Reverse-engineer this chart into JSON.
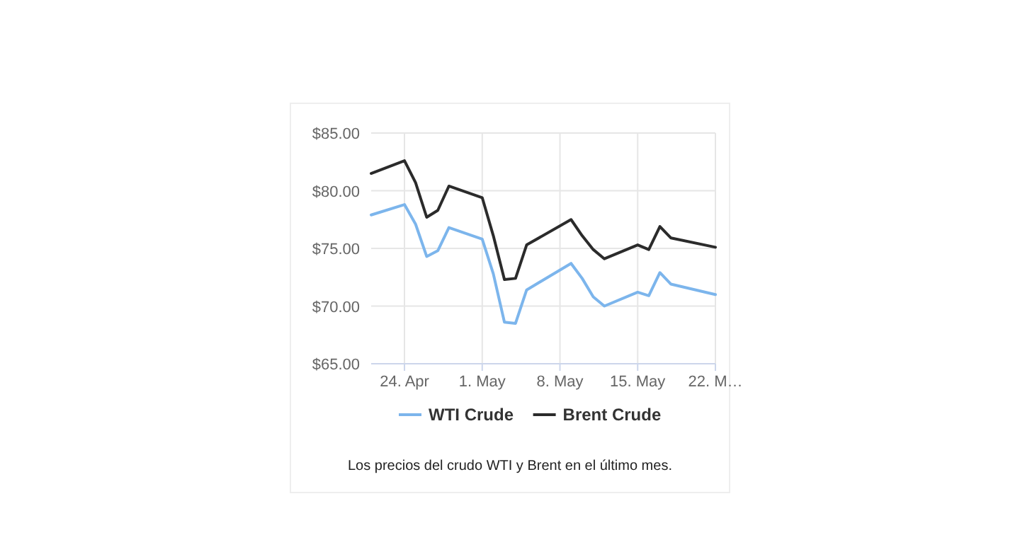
{
  "chart_data": {
    "type": "line",
    "x": [
      "--04-21",
      "--04-24",
      "--04-25",
      "--04-26",
      "--04-27",
      "--04-28",
      "--05-01",
      "--05-02",
      "--05-03",
      "--05-04",
      "--05-05",
      "--05-09",
      "--05-10",
      "--05-11",
      "--05-12",
      "--05-15",
      "--05-16",
      "--05-17",
      "--05-18",
      "--05-22"
    ],
    "series": [
      {
        "name": "WTI Crude",
        "color": "#7cb5ec",
        "values": [
          77.9,
          78.8,
          77.1,
          74.3,
          74.8,
          76.8,
          75.8,
          72.8,
          68.6,
          68.5,
          71.4,
          73.7,
          72.4,
          70.8,
          70.0,
          71.2,
          70.9,
          72.9,
          71.9,
          71.0
        ]
      },
      {
        "name": "Brent Crude",
        "color": "#2b2b2b",
        "values": [
          81.5,
          82.6,
          80.7,
          77.7,
          78.3,
          80.4,
          79.4,
          76.1,
          72.3,
          72.4,
          75.3,
          77.5,
          76.1,
          74.9,
          74.1,
          75.3,
          74.9,
          76.9,
          75.9,
          75.1
        ]
      }
    ],
    "xlim": [
      "--04-21",
      "--05-22"
    ],
    "xticks": [
      {
        "value": "--04-24",
        "label": "24. Apr"
      },
      {
        "value": "--05-01",
        "label": "1. May"
      },
      {
        "value": "--05-08",
        "label": "8. May"
      },
      {
        "value": "--05-15",
        "label": "15. May"
      },
      {
        "value": "--05-22",
        "label": "22. M…"
      }
    ],
    "ylim": [
      65,
      85
    ],
    "yticks": [
      {
        "value": 65,
        "label": "$65.00"
      },
      {
        "value": 70,
        "label": "$70.00"
      },
      {
        "value": 75,
        "label": "$75.00"
      },
      {
        "value": 80,
        "label": "$80.00"
      },
      {
        "value": 85,
        "label": "$85.00"
      }
    ],
    "grid": true,
    "legend": "bottom",
    "marker": "none",
    "line_style": "solid",
    "annotations": [
      "Los precios del crudo WTI y Brent en el último mes."
    ]
  }
}
